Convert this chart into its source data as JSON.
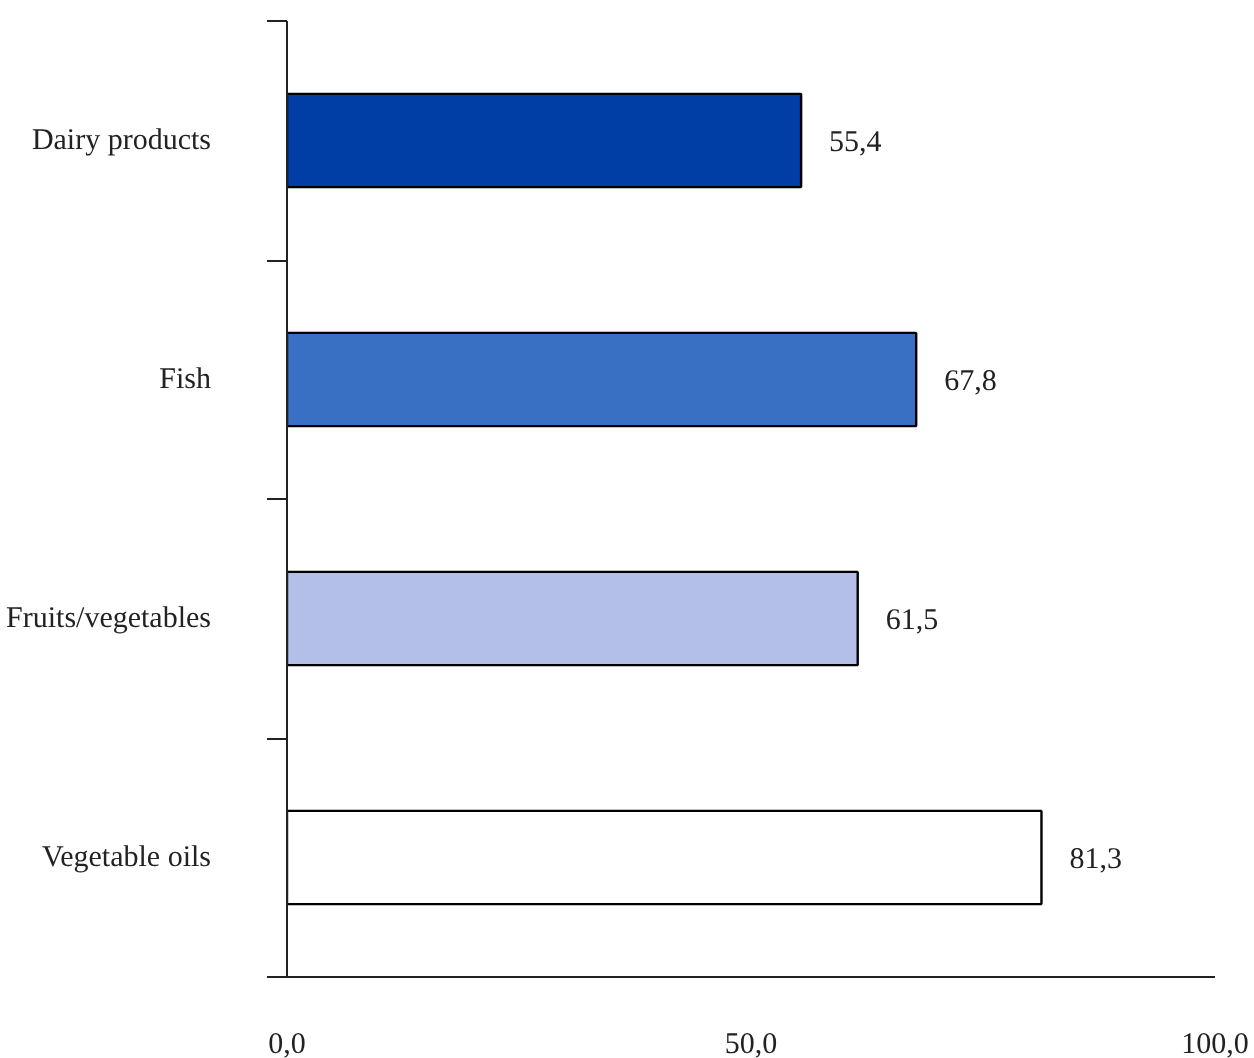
{
  "chart_data": {
    "type": "bar",
    "orientation": "horizontal",
    "categories": [
      "Dairy products",
      "Fish",
      "Fruits/vegetables",
      "Vegetable oils"
    ],
    "values": [
      55.4,
      67.8,
      61.5,
      81.3
    ],
    "colors": [
      "#003da5",
      "#3a70c4",
      "#b3bfe6",
      "#ffffff"
    ],
    "value_labels": [
      "55,4",
      "67,8",
      "61,5",
      "81,3"
    ],
    "xlim": [
      0,
      100
    ],
    "xticks": [
      {
        "value": 0,
        "label": "0,0"
      },
      {
        "value": 50,
        "label": "50,0"
      },
      {
        "value": 100,
        "label": "100,0"
      }
    ],
    "grid": false
  }
}
